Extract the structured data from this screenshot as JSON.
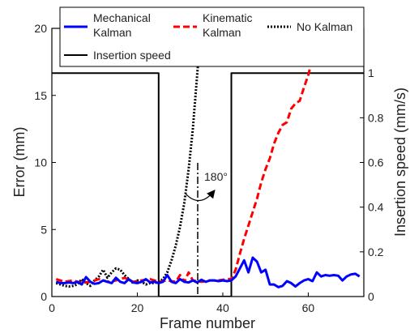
{
  "chart_data": {
    "type": "line",
    "xlabel": "Frame number",
    "ylabel_left": "Error (mm)",
    "ylabel_right": "Insertion speed (mm/s)",
    "xlim": [
      0,
      73
    ],
    "ylim_left": [
      0,
      20
    ],
    "ylim_right": [
      0,
      1.2
    ],
    "x_ticks": [
      0,
      20,
      40,
      60
    ],
    "y_ticks_left": [
      0,
      5,
      10,
      15,
      20
    ],
    "y_ticks_right": [
      0,
      0.2,
      0.4,
      0.6,
      0.8,
      1
    ],
    "grid": false,
    "legend_placement": "top",
    "series": [
      {
        "name": "Mechanical\nKalman",
        "axis": "left",
        "color": "#0000ff",
        "style": "solid",
        "x": [
          1,
          2,
          3,
          4,
          5,
          6,
          7,
          8,
          9,
          10,
          11,
          12,
          13,
          14,
          15,
          16,
          17,
          18,
          19,
          20,
          21,
          22,
          23,
          24,
          25,
          26,
          27,
          28,
          29,
          30,
          31,
          32,
          33,
          34,
          35,
          36,
          37,
          38,
          39,
          40,
          41,
          42,
          43,
          44,
          45,
          46,
          47,
          48,
          49,
          50,
          51,
          52,
          53,
          54,
          55,
          56,
          57,
          58,
          59,
          60,
          61,
          62,
          63,
          64,
          65,
          66,
          67,
          68,
          69,
          70,
          71,
          72
        ],
        "y": [
          1.1,
          1.0,
          1.0,
          1.05,
          1.0,
          1.1,
          0.9,
          1.45,
          1.1,
          0.95,
          1.0,
          1.2,
          1.1,
          1.0,
          1.4,
          1.1,
          1.0,
          1.3,
          1.05,
          1.0,
          1.1,
          1.3,
          1.05,
          1.1,
          1.0,
          1.1,
          1.6,
          1.1,
          1.0,
          1.3,
          1.1,
          1.05,
          1.2,
          1.05,
          1.25,
          1.1,
          1.2,
          1.2,
          1.15,
          1.2,
          1.15,
          1.2,
          1.5,
          2.1,
          2.7,
          1.8,
          2.9,
          2.6,
          1.8,
          2.0,
          0.9,
          0.9,
          0.7,
          0.8,
          1.15,
          1.0,
          0.75,
          1.0,
          1.2,
          1.3,
          1.15,
          1.8,
          1.5,
          1.6,
          1.55,
          1.6,
          1.55,
          1.2,
          1.5,
          1.65,
          1.7,
          1.5
        ]
      },
      {
        "name": "Kinematic\nKalman",
        "axis": "left",
        "color": "#ff0000",
        "style": "dashed",
        "x": [
          1,
          3,
          5,
          7,
          9,
          11,
          13,
          15,
          17,
          19,
          21,
          23,
          25,
          27,
          29,
          30,
          31,
          32,
          33,
          35,
          37,
          39,
          41,
          42,
          43,
          44,
          45,
          46,
          47,
          48,
          49,
          50,
          51,
          52,
          53,
          54,
          55,
          56,
          57,
          58,
          59,
          60,
          61,
          62,
          63
        ],
        "y": [
          1.3,
          1.1,
          1.2,
          1.0,
          1.1,
          1.3,
          1.1,
          1.2,
          1.4,
          1.1,
          1.2,
          1.3,
          1.1,
          1.2,
          1.1,
          1.6,
          1.1,
          1.8,
          1.2,
          1.1,
          1.2,
          1.2,
          1.3,
          1.3,
          2.0,
          3.2,
          4.3,
          5.3,
          6.3,
          7.3,
          8.5,
          9.5,
          10.3,
          11.4,
          12.2,
          12.8,
          13.0,
          14.0,
          14.4,
          14.6,
          15.6,
          16.5,
          17.8,
          19.0,
          20.5
        ]
      },
      {
        "name": "No Kalman",
        "axis": "left",
        "color": "#000000",
        "style": "dotted",
        "x": [
          1,
          2,
          3,
          4,
          5,
          6,
          7,
          8,
          9,
          10,
          11,
          12,
          13,
          14,
          15,
          16,
          17,
          18,
          19,
          20,
          21,
          22,
          23,
          24,
          25,
          26,
          27,
          28,
          29,
          30,
          31,
          32,
          33,
          34,
          35
        ],
        "y": [
          1.0,
          0.9,
          0.8,
          0.75,
          0.8,
          0.9,
          1.3,
          1.0,
          0.8,
          1.2,
          1.5,
          2.0,
          1.4,
          1.8,
          2.1,
          2.0,
          1.6,
          1.3,
          1.0,
          1.2,
          1.1,
          0.9,
          1.0,
          1.0,
          1.1,
          1.3,
          1.8,
          2.7,
          3.8,
          5.2,
          7.0,
          9.5,
          12.5,
          16.5,
          20.5
        ]
      },
      {
        "name": "Insertion speed",
        "axis": "right",
        "color": "#000000",
        "style": "solid",
        "x": [
          0,
          25,
          25,
          42,
          42,
          73
        ],
        "y": [
          1,
          1,
          0,
          0,
          1,
          1
        ]
      }
    ],
    "annotations": [
      {
        "text": "180°"
      }
    ]
  }
}
